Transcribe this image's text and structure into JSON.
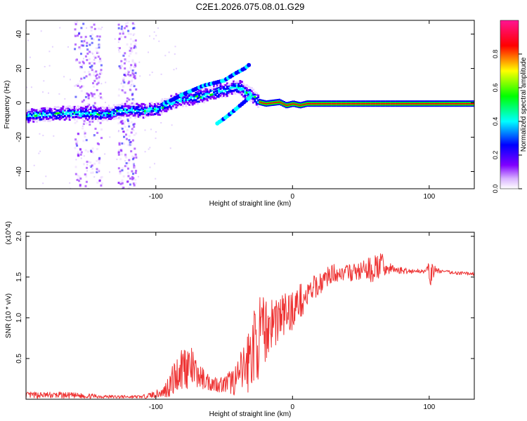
{
  "figure_title": "C2E1.2026.075.08.01.G29",
  "chart_data": [
    {
      "type": "heatmap",
      "title": "C2E1.2026.075.08.01.G29",
      "xlabel": "Height of straight line (km)",
      "ylabel": "Frequency (Hz)",
      "xlim": [
        -195,
        133
      ],
      "ylim": [
        -50,
        48
      ],
      "xticks": [
        -100,
        0,
        100
      ],
      "xtick_labels": [
        "-100",
        "0",
        "100"
      ],
      "yticks": [
        40,
        20,
        0,
        -20,
        -40
      ],
      "ytick_labels": [
        "40",
        "20",
        "0",
        "-20",
        "-40"
      ],
      "colorbar": {
        "label": "Normalized spectral amplitude",
        "range": [
          0,
          1
        ],
        "ticks": [
          0,
          0.2,
          0.4,
          0.6,
          0.8
        ],
        "tick_labels": [
          "0.0",
          "0.2",
          "0.4",
          "0.6",
          "0.8"
        ],
        "colors": [
          "#ffffff",
          "#8000ff",
          "#0000ff",
          "#00ffff",
          "#00ff00",
          "#ffff00",
          "#ff0000",
          "#ff1493"
        ]
      },
      "ridge_x": [
        -195,
        -180,
        -160,
        -140,
        -125,
        -110,
        -100,
        -85,
        -70,
        -55,
        -40,
        -30,
        -25,
        -20,
        -10,
        -5,
        0,
        5,
        10,
        50,
        100,
        133
      ],
      "ridge_y": [
        -7,
        -6,
        -5,
        -6,
        -4,
        -4,
        -3,
        2,
        4,
        7,
        10,
        5,
        1,
        0,
        1,
        -1,
        0,
        -1,
        0,
        0,
        0,
        0
      ],
      "branch_upper_x": [
        -95,
        -80,
        -65,
        -50,
        -42,
        -35,
        -32
      ],
      "branch_upper_y": [
        -1,
        5,
        10,
        13,
        17,
        20,
        22
      ],
      "branch_lower_x": [
        -55,
        -48,
        -42,
        -36,
        -30
      ],
      "branch_lower_y": [
        -12,
        -8,
        -4,
        0,
        4
      ],
      "noise_bands_x": [
        [
          -160,
          -140
        ],
        [
          -128,
          -115
        ]
      ]
    },
    {
      "type": "line",
      "xlabel": "Height of straight line (km)",
      "ylabel": "SNR (10 * v/v)",
      "scale_label": "(x10^4)",
      "xlim": [
        -195,
        133
      ],
      "ylim": [
        0,
        2.05
      ],
      "xticks": [
        -100,
        0,
        100
      ],
      "xtick_labels": [
        "-100",
        "0",
        "100"
      ],
      "yticks": [
        0.5,
        1.0,
        1.5,
        2.0
      ],
      "ytick_labels": [
        "0.5",
        "1.0",
        "1.5",
        "2.0"
      ],
      "color": "#ee3333",
      "x": [
        -195,
        -170,
        -150,
        -130,
        -110,
        -95,
        -88,
        -80,
        -75,
        -70,
        -60,
        -50,
        -40,
        -33,
        -30,
        -25,
        -20,
        -15,
        -10,
        -5,
        0,
        5,
        10,
        15,
        20,
        25,
        30,
        40,
        50,
        60,
        65,
        70,
        80,
        90,
        98,
        101,
        105,
        110,
        120,
        133
      ],
      "y": [
        0.05,
        0.05,
        0.04,
        0.03,
        0.03,
        0.08,
        0.22,
        0.42,
        0.4,
        0.3,
        0.2,
        0.18,
        0.25,
        0.45,
        0.6,
        0.75,
        0.85,
        0.95,
        1.0,
        1.05,
        1.1,
        1.2,
        1.25,
        1.35,
        1.42,
        1.5,
        1.55,
        1.55,
        1.57,
        1.6,
        1.65,
        1.6,
        1.58,
        1.57,
        1.58,
        1.55,
        1.58,
        1.57,
        1.55,
        1.54
      ],
      "noise": [
        0.04,
        0.04,
        0.03,
        0.02,
        0.02,
        0.06,
        0.2,
        0.3,
        0.28,
        0.16,
        0.1,
        0.1,
        0.22,
        0.4,
        0.48,
        0.5,
        0.4,
        0.35,
        0.32,
        0.28,
        0.25,
        0.22,
        0.18,
        0.16,
        0.14,
        0.12,
        0.11,
        0.1,
        0.12,
        0.18,
        0.15,
        0.08,
        0.04,
        0.03,
        0.03,
        0.18,
        0.04,
        0.02,
        0.02,
        0.02
      ]
    }
  ]
}
